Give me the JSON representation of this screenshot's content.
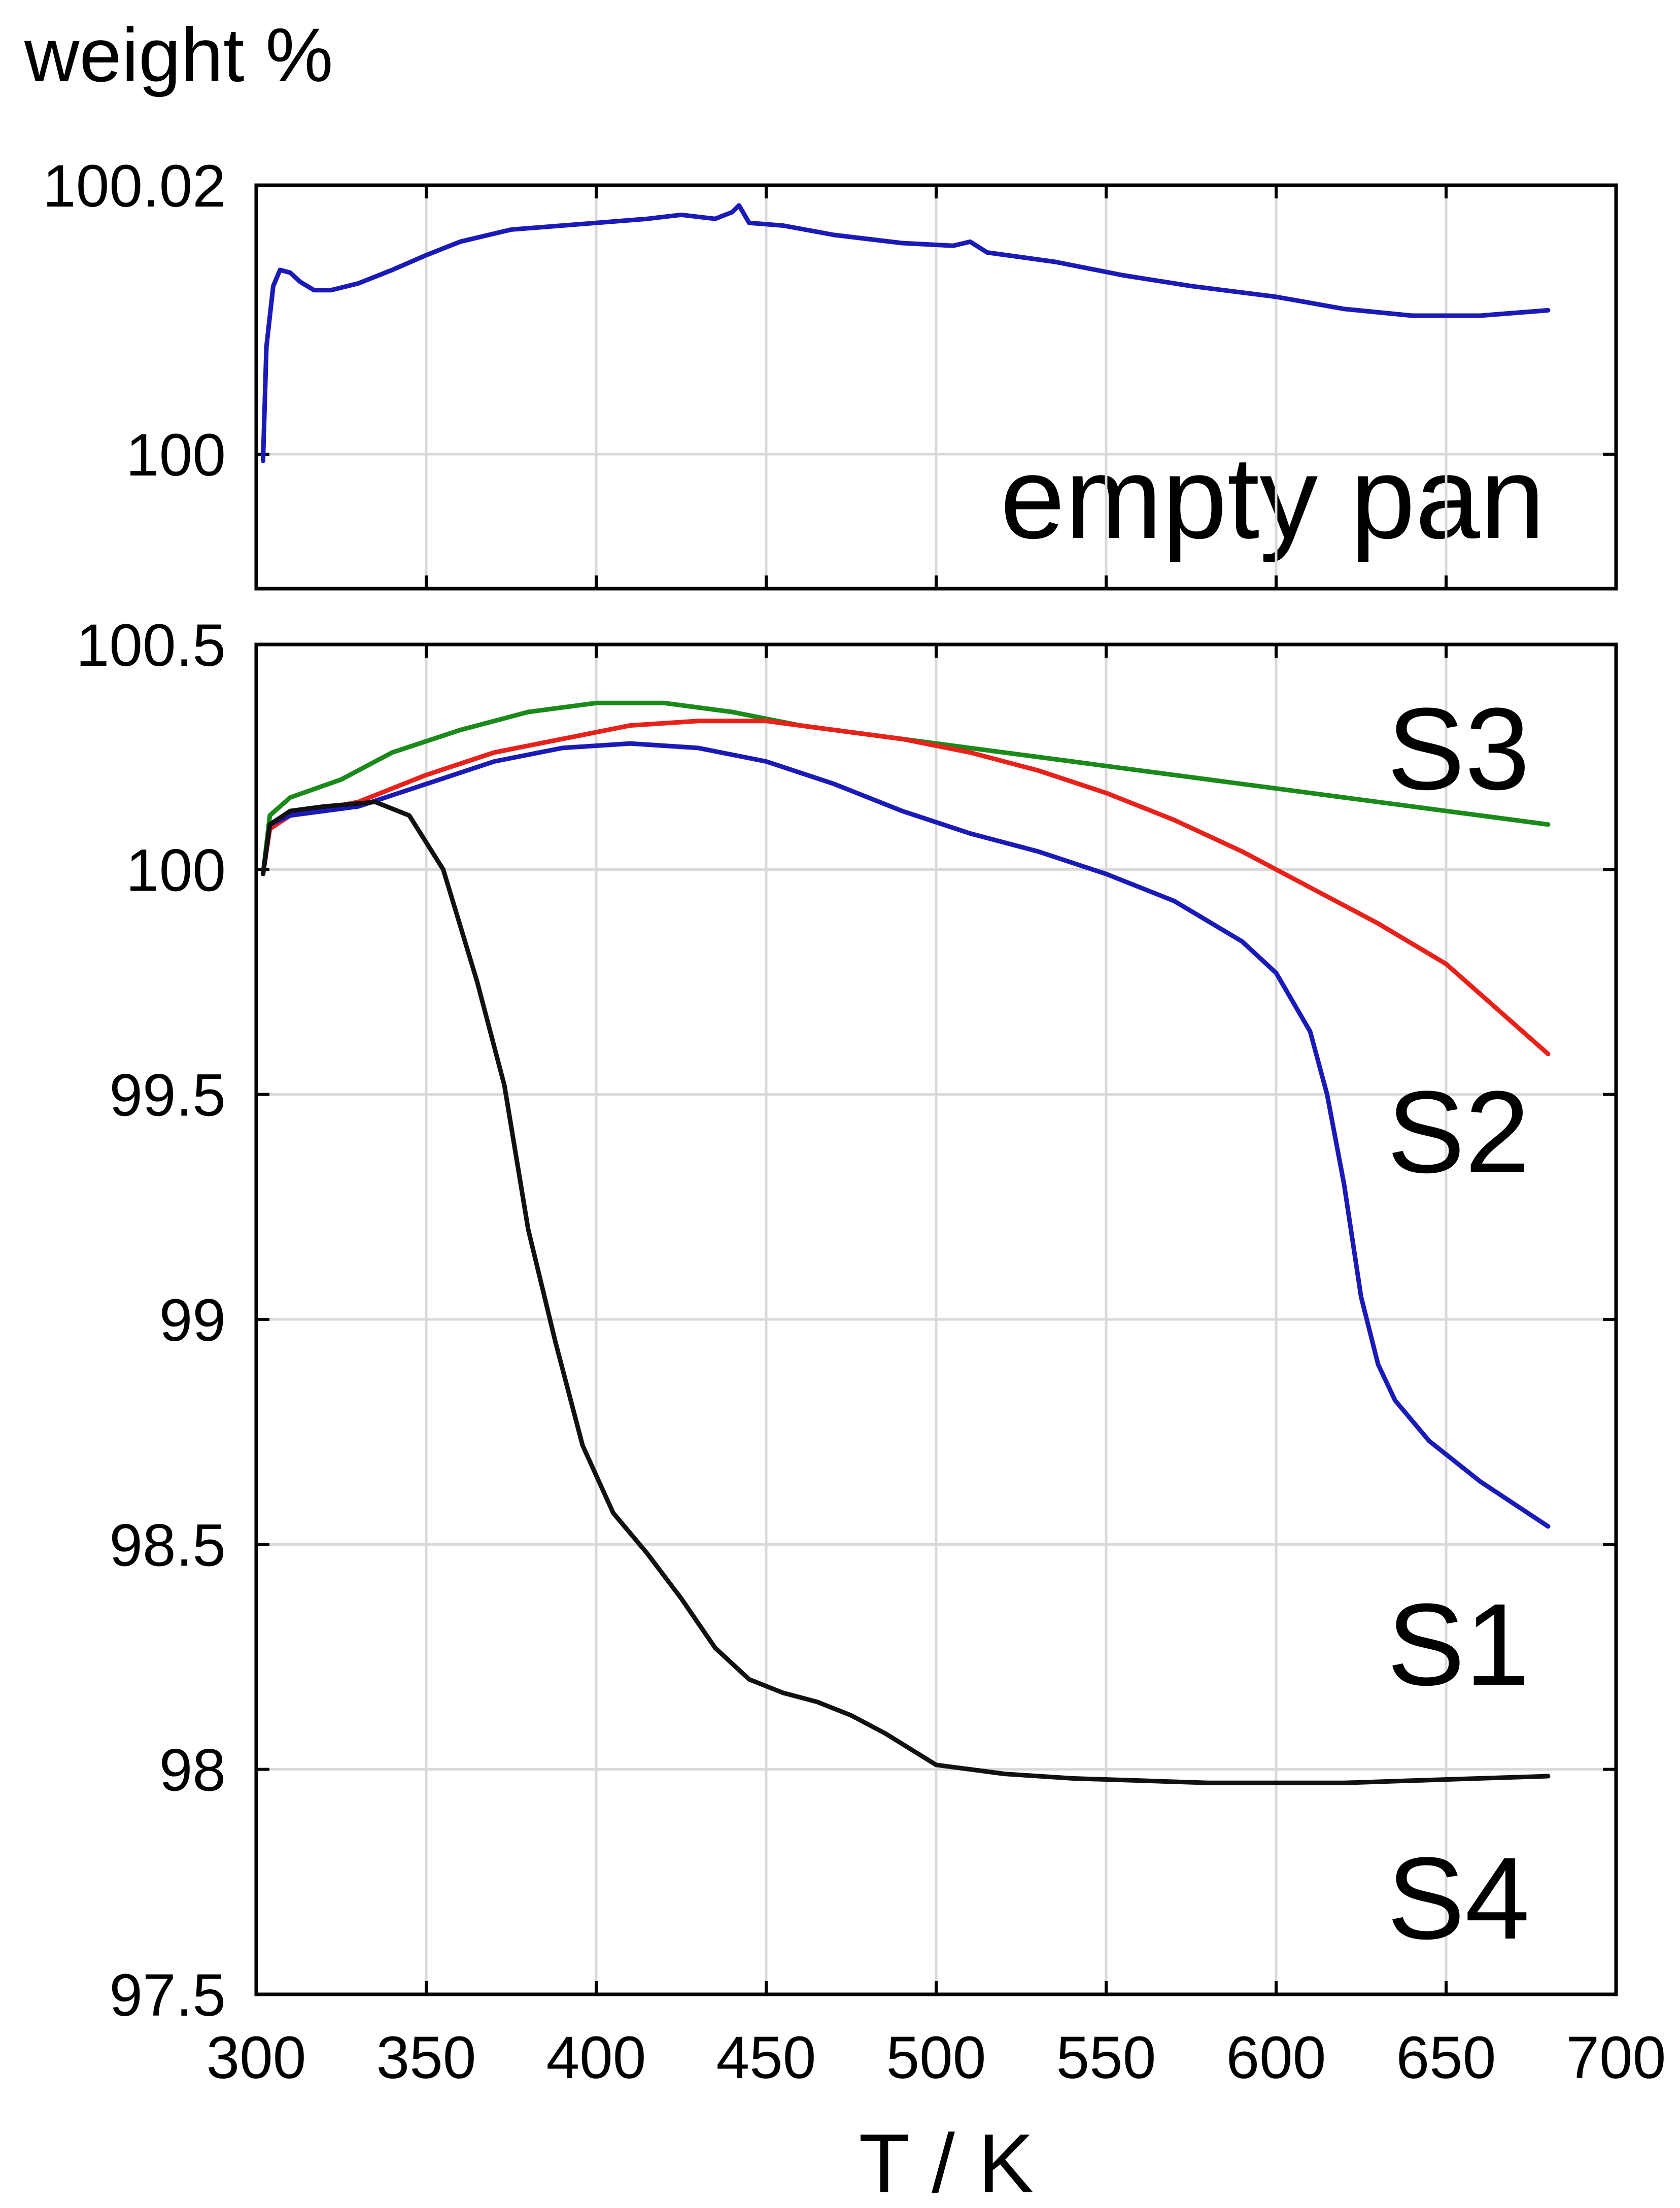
{
  "chart_data": [
    {
      "type": "line",
      "panel": "top",
      "ylabel": "weight  %",
      "annotation": "empty pan",
      "xlim": [
        300,
        700
      ],
      "ylim": [
        99.99,
        100.02
      ],
      "yticks": [
        "100.02",
        "100"
      ],
      "yticks_values": [
        100.02,
        100.0
      ],
      "series": [
        {
          "label": "empty pan",
          "color": "#1a1ab8",
          "points": [
            [
              302,
              99.9995
            ],
            [
              303,
              100.008
            ],
            [
              305,
              100.0125
            ],
            [
              307,
              100.0137
            ],
            [
              310,
              100.0135
            ],
            [
              313,
              100.0128
            ],
            [
              317,
              100.0122
            ],
            [
              322,
              100.0122
            ],
            [
              330,
              100.0127
            ],
            [
              340,
              100.0137
            ],
            [
              350,
              100.0148
            ],
            [
              360,
              100.0158
            ],
            [
              375,
              100.0167
            ],
            [
              390,
              100.017
            ],
            [
              400,
              100.0172
            ],
            [
              415,
              100.0175
            ],
            [
              425,
              100.0178
            ],
            [
              435,
              100.0175
            ],
            [
              440,
              100.018
            ],
            [
              442,
              100.0185
            ],
            [
              445,
              100.0172
            ],
            [
              455,
              100.017
            ],
            [
              470,
              100.0163
            ],
            [
              490,
              100.0157
            ],
            [
              505,
              100.0155
            ],
            [
              510,
              100.0158
            ],
            [
              515,
              100.015
            ],
            [
              535,
              100.0143
            ],
            [
              555,
              100.0133
            ],
            [
              575,
              100.0125
            ],
            [
              600,
              100.0117
            ],
            [
              620,
              100.0108
            ],
            [
              640,
              100.0103
            ],
            [
              660,
              100.0103
            ],
            [
              680,
              100.0107
            ]
          ]
        }
      ]
    },
    {
      "type": "line",
      "panel": "bottom",
      "xlabel": "T / K",
      "xlim": [
        300,
        700
      ],
      "ylim": [
        97.5,
        100.5
      ],
      "xticks": [
        "300",
        "350",
        "400",
        "450",
        "500",
        "550",
        "600",
        "650",
        "700"
      ],
      "xticks_values": [
        300,
        350,
        400,
        450,
        500,
        550,
        600,
        650,
        700
      ],
      "yticks": [
        "100.5",
        "100",
        "99.5",
        "99",
        "98.5",
        "98",
        "97.5"
      ],
      "yticks_values": [
        100.5,
        100.0,
        99.5,
        99.0,
        98.5,
        98.0,
        97.5
      ],
      "series": [
        {
          "name": "S3",
          "color": "#1a8a1a",
          "points": [
            [
              302,
              99.99
            ],
            [
              304,
              100.12
            ],
            [
              310,
              100.16
            ],
            [
              325,
              100.2
            ],
            [
              340,
              100.26
            ],
            [
              360,
              100.31
            ],
            [
              380,
              100.35
            ],
            [
              400,
              100.37
            ],
            [
              420,
              100.37
            ],
            [
              440,
              100.35
            ],
            [
              460,
              100.32
            ],
            [
              480,
              100.3
            ],
            [
              500,
              100.28
            ],
            [
              520,
              100.26
            ],
            [
              540,
              100.24
            ],
            [
              560,
              100.22
            ],
            [
              580,
              100.2
            ],
            [
              600,
              100.18
            ],
            [
              620,
              100.16
            ],
            [
              640,
              100.14
            ],
            [
              660,
              100.12
            ],
            [
              680,
              100.1
            ]
          ]
        },
        {
          "name": "S2",
          "color": "#e8221a",
          "points": [
            [
              302,
              99.99
            ],
            [
              304,
              100.09
            ],
            [
              310,
              100.12
            ],
            [
              330,
              100.15
            ],
            [
              350,
              100.21
            ],
            [
              370,
              100.26
            ],
            [
              390,
              100.29
            ],
            [
              410,
              100.32
            ],
            [
              430,
              100.33
            ],
            [
              450,
              100.33
            ],
            [
              470,
              100.31
            ],
            [
              490,
              100.29
            ],
            [
              510,
              100.26
            ],
            [
              530,
              100.22
            ],
            [
              550,
              100.17
            ],
            [
              570,
              100.11
            ],
            [
              590,
              100.04
            ],
            [
              610,
              99.96
            ],
            [
              630,
              99.88
            ],
            [
              650,
              99.79
            ],
            [
              680,
              99.59
            ]
          ]
        },
        {
          "name": "S1",
          "color": "#1a1ab8",
          "points": [
            [
              302,
              99.99
            ],
            [
              304,
              100.1
            ],
            [
              310,
              100.12
            ],
            [
              330,
              100.14
            ],
            [
              350,
              100.19
            ],
            [
              370,
              100.24
            ],
            [
              390,
              100.27
            ],
            [
              410,
              100.28
            ],
            [
              430,
              100.27
            ],
            [
              450,
              100.24
            ],
            [
              470,
              100.19
            ],
            [
              490,
              100.13
            ],
            [
              510,
              100.08
            ],
            [
              530,
              100.04
            ],
            [
              550,
              99.99
            ],
            [
              570,
              99.93
            ],
            [
              590,
              99.84
            ],
            [
              600,
              99.77
            ],
            [
              610,
              99.64
            ],
            [
              615,
              99.5
            ],
            [
              620,
              99.3
            ],
            [
              625,
              99.05
            ],
            [
              630,
              98.9
            ],
            [
              635,
              98.82
            ],
            [
              645,
              98.73
            ],
            [
              660,
              98.64
            ],
            [
              680,
              98.54
            ]
          ]
        },
        {
          "name": "S4",
          "color": "#111111",
          "points": [
            [
              302,
              99.99
            ],
            [
              304,
              100.1
            ],
            [
              310,
              100.13
            ],
            [
              320,
              100.14
            ],
            [
              335,
              100.15
            ],
            [
              345,
              100.12
            ],
            [
              355,
              100.0
            ],
            [
              365,
              99.75
            ],
            [
              373,
              99.52
            ],
            [
              380,
              99.2
            ],
            [
              388,
              98.95
            ],
            [
              396,
              98.72
            ],
            [
              405,
              98.57
            ],
            [
              415,
              98.48
            ],
            [
              425,
              98.38
            ],
            [
              435,
              98.27
            ],
            [
              445,
              98.2
            ],
            [
              455,
              98.17
            ],
            [
              465,
              98.15
            ],
            [
              475,
              98.12
            ],
            [
              485,
              98.08
            ],
            [
              500,
              98.01
            ],
            [
              520,
              97.99
            ],
            [
              540,
              97.98
            ],
            [
              560,
              97.975
            ],
            [
              580,
              97.97
            ],
            [
              600,
              97.97
            ],
            [
              620,
              97.97
            ],
            [
              640,
              97.975
            ],
            [
              660,
              97.98
            ],
            [
              680,
              97.985
            ]
          ]
        }
      ]
    }
  ]
}
